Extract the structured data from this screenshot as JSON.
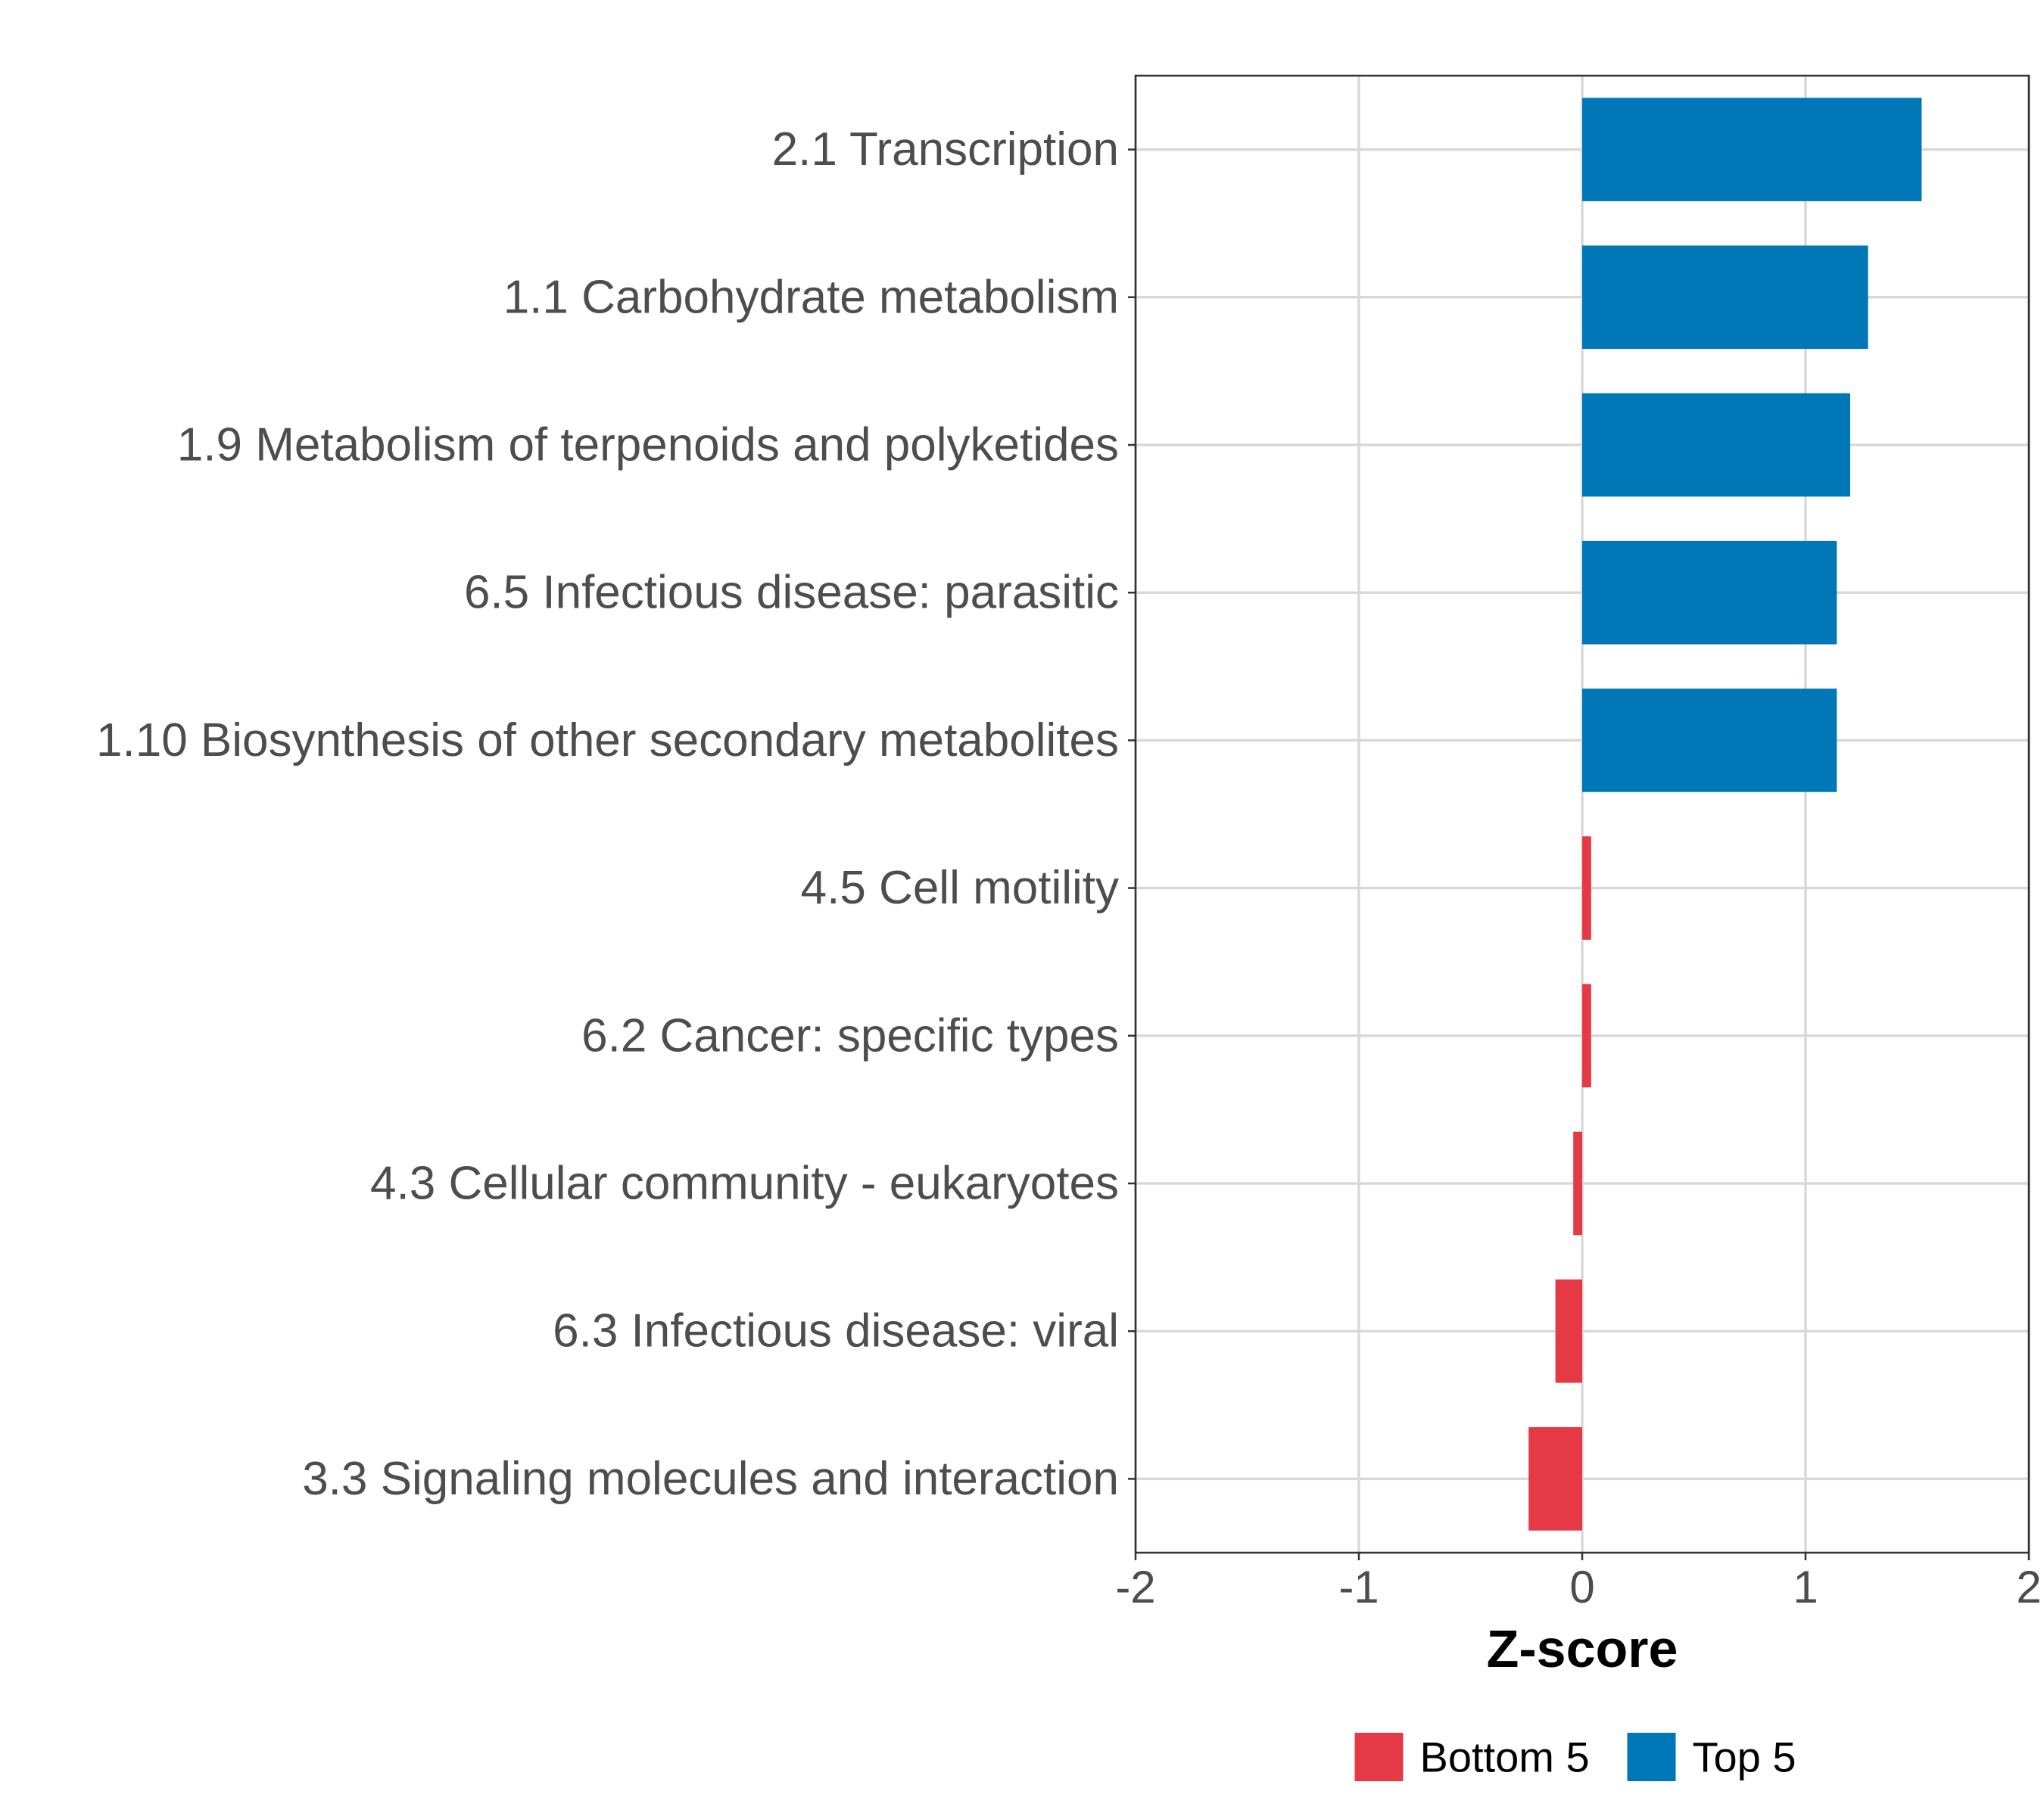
{
  "chart_data": {
    "type": "bar",
    "orientation": "horizontal",
    "categories": [
      "2.1 Transcription",
      "1.1 Carbohydrate metabolism",
      "1.9 Metabolism of terpenoids and polyketides",
      "6.5 Infectious disease: parasitic",
      "1.10 Biosynthesis of other secondary metabolites",
      "4.5 Cell motility",
      "6.2 Cancer: specific types",
      "4.3 Cellular community - eukaryotes",
      "6.3 Infectious disease: viral",
      "3.3 Signaling molecules and interaction"
    ],
    "values": [
      1.52,
      1.28,
      1.2,
      1.14,
      1.14,
      0.04,
      0.04,
      -0.04,
      -0.12,
      -0.24
    ],
    "groups": [
      "Top 5",
      "Top 5",
      "Top 5",
      "Top 5",
      "Top 5",
      "Bottom 5",
      "Bottom 5",
      "Bottom 5",
      "Bottom 5",
      "Bottom 5"
    ],
    "title": "",
    "xlabel": "Z-score",
    "ylabel": "",
    "xlim": [
      -2,
      2
    ],
    "xticks": [
      -2,
      -1,
      0,
      1,
      2
    ],
    "xtick_labels": [
      "-2",
      "-1",
      "0",
      "1",
      "2"
    ],
    "grid": true,
    "legend": {
      "placement": "bottom",
      "entries": [
        {
          "label": "Bottom 5",
          "color": "#e63946"
        },
        {
          "label": "Top 5",
          "color": "#0077b6"
        }
      ]
    },
    "colors": {
      "Top 5": "#0077b6",
      "Bottom 5": "#e63946",
      "grid": "#d9d9d9",
      "axis": "#333333"
    }
  }
}
